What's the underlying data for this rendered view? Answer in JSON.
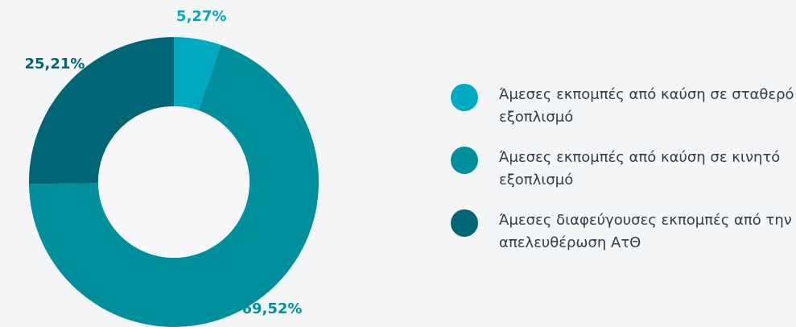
{
  "chart_data": {
    "type": "donut",
    "categories": [
      "Άμεσες εκπομπές από καύση σε σταθερό εξοπλισμό",
      "Άμεσες εκπομπές από καύση σε κινητό εξοπλισμό",
      "Άμεσες διαφεύγουσες εκπομπές από την απελευθέρωση ΑτΘ"
    ],
    "values": [
      5.27,
      69.52,
      25.21
    ],
    "value_labels": [
      "5,27%",
      "69,52%",
      "25,21%"
    ],
    "colors": [
      "#00aac2",
      "#008f9d",
      "#006575"
    ]
  }
}
